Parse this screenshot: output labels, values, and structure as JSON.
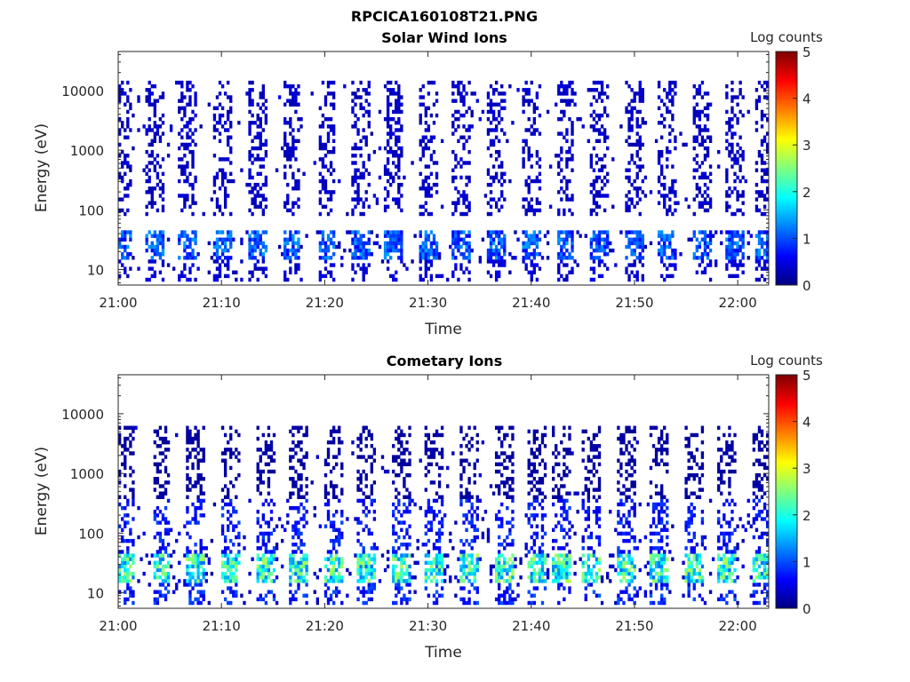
{
  "figure": {
    "title": "RPCICA160108T21.PNG"
  },
  "colors": {
    "colormap": [
      "#00007f",
      "#0000ff",
      "#007fff",
      "#00ffff",
      "#7fff7f",
      "#ffff00",
      "#ff7f00",
      "#ff0000",
      "#7f0000"
    ]
  },
  "chart_data": [
    {
      "type": "heatmap",
      "title": "Solar Wind Ions",
      "xlabel": "Time",
      "ylabel": "Energy (eV)",
      "x_ticks": [
        "21:00",
        "21:10",
        "21:20",
        "21:30",
        "21:40",
        "21:50",
        "22:00"
      ],
      "x_range": [
        "21:00",
        "22:03"
      ],
      "y_scale": "log",
      "y_ticks": [
        "10",
        "100",
        "1000",
        "10000"
      ],
      "y_range": [
        5.5,
        45000
      ],
      "colorbar": {
        "label": "Log counts",
        "range": [
          0,
          5
        ],
        "ticks": [
          "0",
          "1",
          "2",
          "3",
          "4",
          "5"
        ]
      },
      "scan_minutes": [
        0.5,
        3.5,
        6.8,
        10.2,
        13.5,
        16.8,
        20.2,
        23.5,
        26.7,
        30.0,
        33.3,
        36.6,
        40.0,
        43.3,
        46.6,
        50.0,
        53.2,
        56.5,
        59.8,
        62.5
      ],
      "bands": [
        {
          "e_min": 15,
          "e_max": 45,
          "level": 1.2
        },
        {
          "e_min": 6,
          "e_max": 15,
          "level": 0.5
        },
        {
          "e_min": 80,
          "e_max": 15000,
          "level": 0.4
        }
      ]
    },
    {
      "type": "heatmap",
      "title": "Cometary Ions",
      "xlabel": "Time",
      "ylabel": "Energy (eV)",
      "x_ticks": [
        "21:00",
        "21:10",
        "21:20",
        "21:30",
        "21:40",
        "21:50",
        "22:00"
      ],
      "x_range": [
        "21:00",
        "22:03"
      ],
      "y_scale": "log",
      "y_ticks": [
        "10",
        "100",
        "1000",
        "10000"
      ],
      "y_range": [
        5.5,
        45000
      ],
      "colorbar": {
        "label": "Log counts",
        "range": [
          0,
          5
        ],
        "ticks": [
          "0",
          "1",
          "2",
          "3",
          "4",
          "5"
        ]
      },
      "scan_minutes": [
        0.8,
        4.2,
        7.5,
        10.8,
        14.2,
        17.4,
        20.8,
        24.0,
        27.4,
        30.6,
        34.0,
        37.3,
        40.6,
        43.0,
        45.8,
        49.2,
        52.4,
        55.8,
        59.0,
        62.2
      ],
      "bands": [
        {
          "e_min": 15,
          "e_max": 45,
          "level": 2.3
        },
        {
          "e_min": 6,
          "e_max": 15,
          "level": 0.9
        },
        {
          "e_min": 45,
          "e_max": 400,
          "level": 0.8
        },
        {
          "e_min": 400,
          "e_max": 6000,
          "level": 0.2
        }
      ]
    }
  ]
}
